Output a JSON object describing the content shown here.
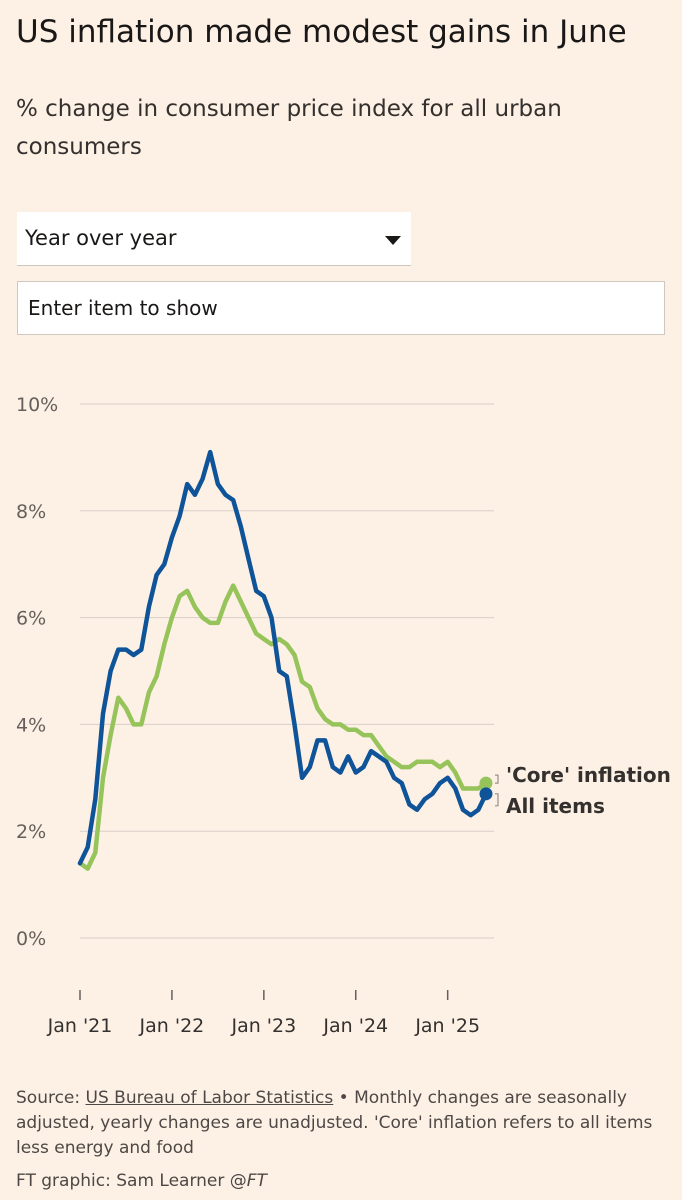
{
  "header": {
    "title": "US inflation made modest gains in June",
    "subtitle": "% change in consumer price index for all urban consumers"
  },
  "controls": {
    "dropdown_value": "Year over year",
    "search_placeholder": "Enter item to show"
  },
  "footer": {
    "source_prefix": "Source: ",
    "source_link": "US Bureau of Labor Statistics",
    "source_note": " • Monthly changes are seasonally adjusted, yearly changes are unadjusted. 'Core' inflation refers to all items less energy and food",
    "credit_text": "FT graphic: Sam Learner @",
    "credit_handle": "FT"
  },
  "colors": {
    "background": "#fdf1e6",
    "all_items": "#0f5499",
    "core": "#96c35a",
    "gridline": "#d9d0c7"
  },
  "chart_data": {
    "type": "line",
    "title": "US inflation made modest gains in June",
    "ylabel": "%",
    "xlabel": "",
    "ylim": [
      0,
      10
    ],
    "yticks": [
      0,
      2,
      4,
      6,
      8,
      10
    ],
    "ytick_labels": [
      "0%",
      "2%",
      "4%",
      "6%",
      "8%",
      "10%"
    ],
    "xtick_labels": [
      "Jan '21",
      "Jan '22",
      "Jan '23",
      "Jan '24",
      "Jan '25"
    ],
    "x_start": "Jan 2021",
    "x_end": "Jun 2025",
    "legend": "end-of-line labels",
    "series": [
      {
        "name": "All items",
        "label": "All items",
        "color": "#0f5499",
        "values": [
          1.4,
          1.7,
          2.6,
          4.2,
          5.0,
          5.4,
          5.4,
          5.3,
          5.4,
          6.2,
          6.8,
          7.0,
          7.5,
          7.9,
          8.5,
          8.3,
          8.6,
          9.1,
          8.5,
          8.3,
          8.2,
          7.7,
          7.1,
          6.5,
          6.4,
          6.0,
          5.0,
          4.9,
          4.0,
          3.0,
          3.2,
          3.7,
          3.7,
          3.2,
          3.1,
          3.4,
          3.1,
          3.2,
          3.5,
          3.4,
          3.3,
          3.0,
          2.9,
          2.5,
          2.4,
          2.6,
          2.7,
          2.9,
          3.0,
          2.8,
          2.4,
          2.3,
          2.4,
          2.7
        ]
      },
      {
        "name": "'Core' inflation",
        "label": "'Core' inflation",
        "color": "#96c35a",
        "values": [
          1.4,
          1.3,
          1.6,
          3.0,
          3.8,
          4.5,
          4.3,
          4.0,
          4.0,
          4.6,
          4.9,
          5.5,
          6.0,
          6.4,
          6.5,
          6.2,
          6.0,
          5.9,
          5.9,
          6.3,
          6.6,
          6.3,
          6.0,
          5.7,
          5.6,
          5.5,
          5.6,
          5.5,
          5.3,
          4.8,
          4.7,
          4.3,
          4.1,
          4.0,
          4.0,
          3.9,
          3.9,
          3.8,
          3.8,
          3.6,
          3.4,
          3.3,
          3.2,
          3.2,
          3.3,
          3.3,
          3.3,
          3.2,
          3.3,
          3.1,
          2.8,
          2.8,
          2.8,
          2.9
        ]
      }
    ]
  }
}
